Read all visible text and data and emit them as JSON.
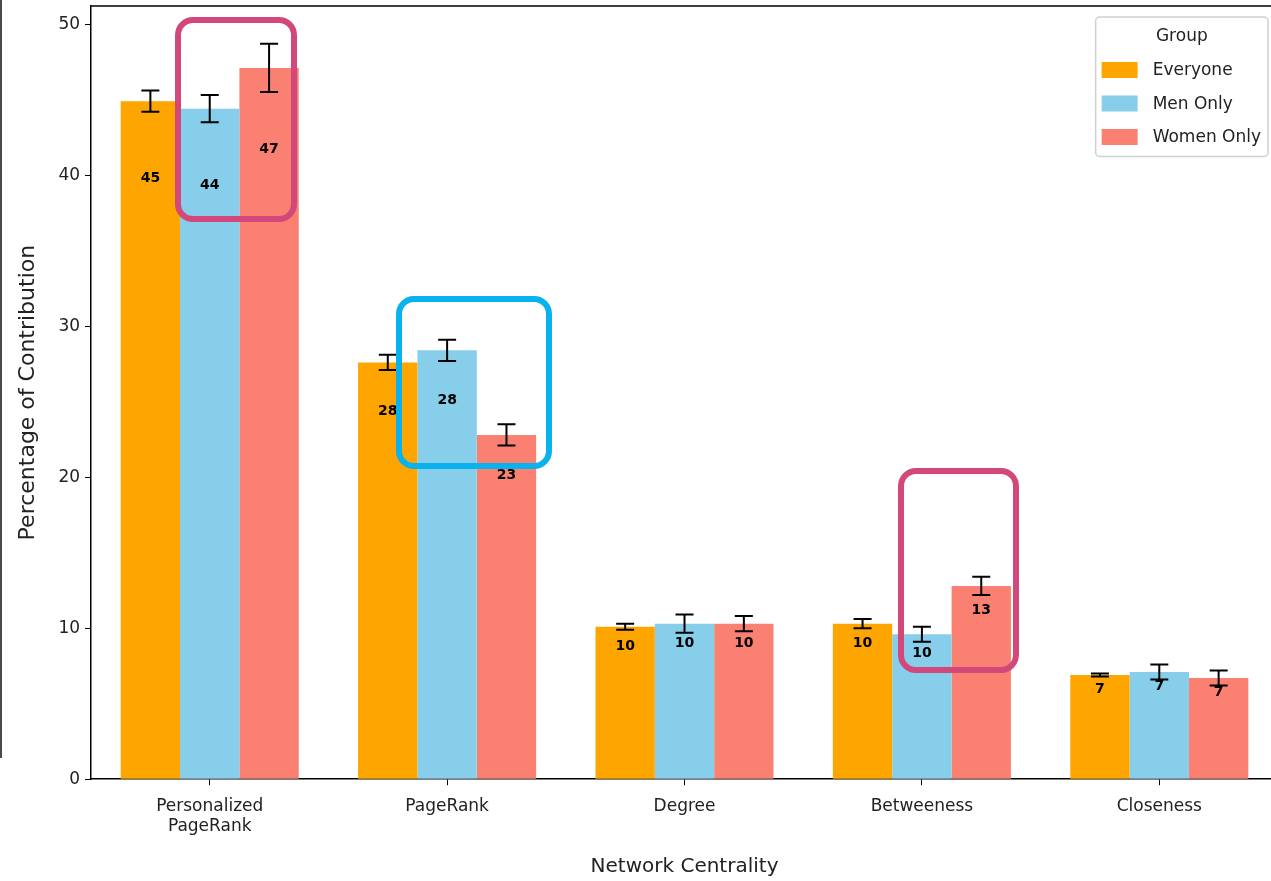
{
  "chart_data": {
    "type": "bar",
    "xlabel": "Network Centrality",
    "ylabel": "Percentage of Contribution",
    "legend_title": "Group",
    "legend": "top right",
    "categories": [
      "Personalized\nPageRank",
      "PageRank",
      "Degree",
      "Betweeness",
      "Closeness"
    ],
    "series": [
      {
        "name": "Everyone",
        "color": "#ffa500",
        "values": [
          44.9,
          27.6,
          10.1,
          10.3,
          6.9
        ],
        "errors": [
          0.7,
          0.5,
          0.2,
          0.3,
          0.1
        ],
        "value_labels": [
          "45",
          "28",
          "10",
          "10",
          "7"
        ]
      },
      {
        "name": "Men Only",
        "color": "#87ceeb",
        "values": [
          44.4,
          28.4,
          10.3,
          9.6,
          7.1
        ],
        "errors": [
          0.9,
          0.7,
          0.6,
          0.5,
          0.5
        ],
        "value_labels": [
          "44",
          "28",
          "10",
          "10",
          "7"
        ]
      },
      {
        "name": "Women Only",
        "color": "#fa8072",
        "values": [
          47.1,
          22.8,
          10.3,
          12.8,
          6.7
        ],
        "errors": [
          1.6,
          0.7,
          0.5,
          0.6,
          0.5
        ],
        "value_labels": [
          "47",
          "23",
          "10",
          "13",
          "7"
        ]
      }
    ],
    "ylim": [
      0,
      51.2
    ],
    "yticks": [
      0,
      10,
      20,
      30,
      40,
      50
    ]
  }
}
